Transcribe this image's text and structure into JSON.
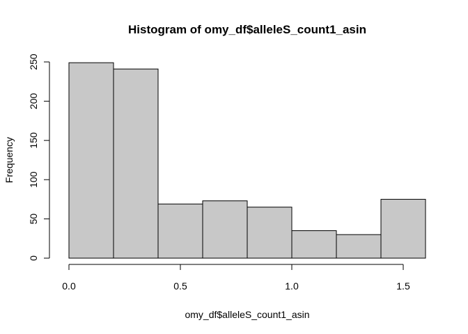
{
  "chart_data": {
    "type": "bar",
    "title": "Histogram of omy_df$alleleS_count1_asin",
    "xlabel": "omy_df$alleleS_count1_asin",
    "ylabel": "Frequency",
    "bins": [
      {
        "start": 0.0,
        "end": 0.2,
        "count": 249
      },
      {
        "start": 0.2,
        "end": 0.4,
        "count": 241
      },
      {
        "start": 0.4,
        "end": 0.6,
        "count": 69
      },
      {
        "start": 0.6,
        "end": 0.8,
        "count": 73
      },
      {
        "start": 0.8,
        "end": 1.0,
        "count": 65
      },
      {
        "start": 1.0,
        "end": 1.2,
        "count": 35
      },
      {
        "start": 1.2,
        "end": 1.4,
        "count": 30
      },
      {
        "start": 1.4,
        "end": 1.6,
        "count": 75
      }
    ],
    "xlim": [
      0,
      1.6
    ],
    "ylim": [
      0,
      250
    ],
    "x_ticks": [
      {
        "value": 0.0,
        "label": "0.0"
      },
      {
        "value": 0.5,
        "label": "0.5"
      },
      {
        "value": 1.0,
        "label": "1.0"
      },
      {
        "value": 1.5,
        "label": "1.5"
      }
    ],
    "y_ticks": [
      {
        "value": 0,
        "label": "0"
      },
      {
        "value": 50,
        "label": "50"
      },
      {
        "value": 100,
        "label": "100"
      },
      {
        "value": 150,
        "label": "150"
      },
      {
        "value": 200,
        "label": "200"
      },
      {
        "value": 250,
        "label": "250"
      }
    ],
    "bar_color": "#c8c8c8",
    "grid": false,
    "legend": "none"
  }
}
